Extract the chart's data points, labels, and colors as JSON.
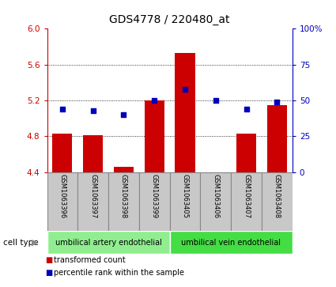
{
  "title": "GDS4778 / 220480_at",
  "samples": [
    "GSM1063396",
    "GSM1063397",
    "GSM1063398",
    "GSM1063399",
    "GSM1063405",
    "GSM1063406",
    "GSM1063407",
    "GSM1063408"
  ],
  "transformed_counts": [
    4.83,
    4.81,
    4.46,
    5.2,
    5.73,
    4.4,
    4.83,
    5.15
  ],
  "percentile_ranks": [
    44,
    43,
    40,
    50,
    58,
    50,
    44,
    49
  ],
  "ylim_left": [
    4.4,
    6.0
  ],
  "ylim_right": [
    0,
    100
  ],
  "yticks_left": [
    4.4,
    4.8,
    5.2,
    5.6,
    6.0
  ],
  "yticks_right": [
    0,
    25,
    50,
    75,
    100
  ],
  "ytick_labels_right": [
    "0",
    "25",
    "50",
    "75",
    "100%"
  ],
  "bar_color": "#CC0000",
  "dot_color": "#0000BB",
  "grid_color": "#000000",
  "cell_type_groups": [
    {
      "label": "umbilical artery endothelial",
      "start": 0,
      "end": 4,
      "color": "#90EE90"
    },
    {
      "label": "umbilical vein endothelial",
      "start": 4,
      "end": 8,
      "color": "#44DD44"
    }
  ],
  "cell_type_label": "cell type",
  "legend_items": [
    {
      "label": "transformed count",
      "color": "#CC0000"
    },
    {
      "label": "percentile rank within the sample",
      "color": "#0000BB"
    }
  ],
  "bar_bottom": 4.4,
  "tick_label_color_left": "#CC0000",
  "tick_label_color_right": "#0000BB",
  "sample_box_color": "#C8C8C8",
  "sample_box_edge": "#888888"
}
